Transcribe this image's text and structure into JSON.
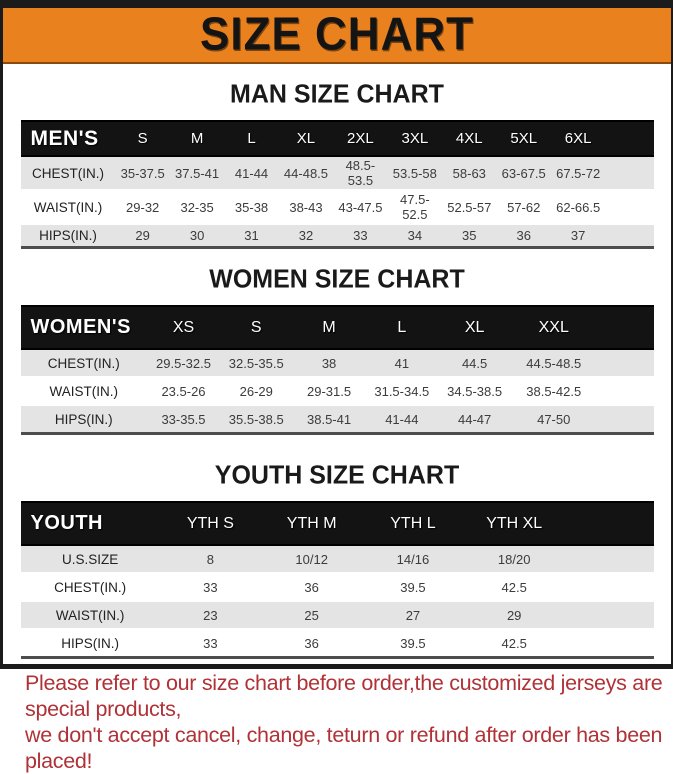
{
  "banner": {
    "title": "SIZE CHART",
    "bg_color": "#E8811E"
  },
  "colors": {
    "banner_orange": "#E8811E",
    "table_header_black": "#131313",
    "row_gray": "#E4E4E4",
    "footer_red": "#B03237"
  },
  "sections": {
    "men": {
      "title": "MAN SIZE CHART",
      "table": {
        "header": [
          "MEN'S",
          "S",
          "M",
          "L",
          "XL",
          "2XL",
          "3XL",
          "4XL",
          "5XL",
          "6XL"
        ],
        "rows": [
          [
            "CHEST(IN.)",
            "35-37.5",
            "37.5-41",
            "41-44",
            "44-48.5",
            "48.5-53.5",
            "53.5-58",
            "58-63",
            "63-67.5",
            "67.5-72"
          ],
          [
            "WAIST(IN.)",
            "29-32",
            "32-35",
            "35-38",
            "38-43",
            "43-47.5",
            "47.5-52.5",
            "52.5-57",
            "57-62",
            "62-66.5"
          ],
          [
            "HIPS(IN.)",
            "29",
            "30",
            "31",
            "32",
            "33",
            "34",
            "35",
            "36",
            "37"
          ]
        ]
      }
    },
    "women": {
      "title": "WOMEN SIZE CHART",
      "table": {
        "header": [
          "WOMEN'S",
          "XS",
          "S",
          "M",
          "L",
          "XL",
          "XXL"
        ],
        "rows": [
          [
            "CHEST(IN.)",
            "29.5-32.5",
            "32.5-35.5",
            "38",
            "41",
            "44.5",
            "44.5-48.5"
          ],
          [
            "WAIST(IN.)",
            "23.5-26",
            "26-29",
            "29-31.5",
            "31.5-34.5",
            "34.5-38.5",
            "38.5-42.5"
          ],
          [
            "HIPS(IN.)",
            "33-35.5",
            "35.5-38.5",
            "38.5-41",
            "41-44",
            "44-47",
            "47-50"
          ]
        ]
      }
    },
    "youth": {
      "title": "YOUTH SIZE CHART",
      "table": {
        "header": [
          "YOUTH",
          "YTH S",
          "YTH M",
          "YTH L",
          "YTH XL"
        ],
        "rows": [
          [
            "U.S.SIZE",
            "8",
            "10/12",
            "14/16",
            "18/20"
          ],
          [
            "CHEST(IN.)",
            "33",
            "36",
            "39.5",
            "42.5"
          ],
          [
            "WAIST(IN.)",
            "23",
            "25",
            "27",
            "29"
          ],
          [
            "HIPS(IN.)",
            "33",
            "36",
            "39.5",
            "42.5"
          ]
        ]
      }
    }
  },
  "footer": {
    "line1": "Please refer to our size chart before order,the customized jerseys are special products,",
    "line2": "we don't accept cancel, change, teturn or refund after order has been placed!"
  }
}
